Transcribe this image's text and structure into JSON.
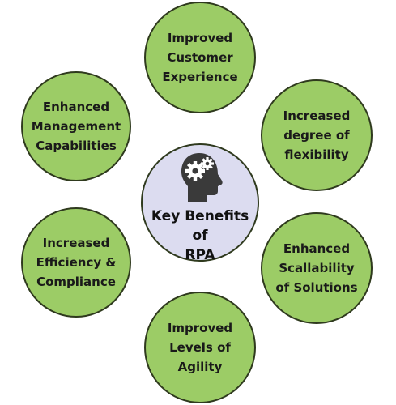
{
  "diagram": {
    "center": {
      "title": "Key Benefits of\nRPA",
      "icon": "head-with-gears-icon"
    },
    "benefits": [
      {
        "id": "top",
        "label": "Improved\nCustomer\nExperience"
      },
      {
        "id": "tl",
        "label": "Enhanced\nManagement\nCapabilities"
      },
      {
        "id": "tr",
        "label": "Increased\ndegree of\nflexibility"
      },
      {
        "id": "bl",
        "label": "Increased\nEfficiency &\nCompliance"
      },
      {
        "id": "br",
        "label": "Enhanced\nScallability\nof Solutions"
      },
      {
        "id": "bottom",
        "label": "Improved\nLevels of\nAgility"
      }
    ]
  },
  "colors": {
    "benefit_fill": "#9ccc66",
    "center_fill": "#dcdcf0",
    "outline": "#2f3a1e",
    "icon": "#3a3a3a"
  }
}
